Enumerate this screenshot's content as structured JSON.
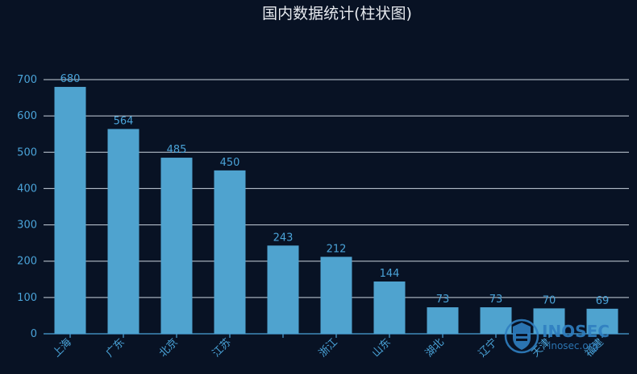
{
  "chart_data": {
    "type": "bar",
    "title": "国内数据统计(柱状图)",
    "categories": [
      "上海",
      "广东",
      "北京",
      "江苏",
      "",
      "浙江",
      "山东",
      "湖北",
      "辽宁",
      "天津",
      "福建"
    ],
    "values": [
      680,
      564,
      485,
      450,
      243,
      212,
      144,
      73,
      73,
      70,
      69
    ],
    "ylim": [
      0,
      700
    ],
    "yticks": [
      0,
      100,
      200,
      300,
      400,
      500,
      600,
      700
    ],
    "grid": true,
    "colors": {
      "background": "#081224",
      "bar": "#4fa3cf",
      "text": "#4aa3d8",
      "title": "#e6e9ee",
      "grid": "#c9d3dd"
    }
  },
  "watermark": {
    "brand": "INOSEC",
    "site": "inosec.org",
    "icon": "shield-icon",
    "color": "#2f7fc1"
  }
}
